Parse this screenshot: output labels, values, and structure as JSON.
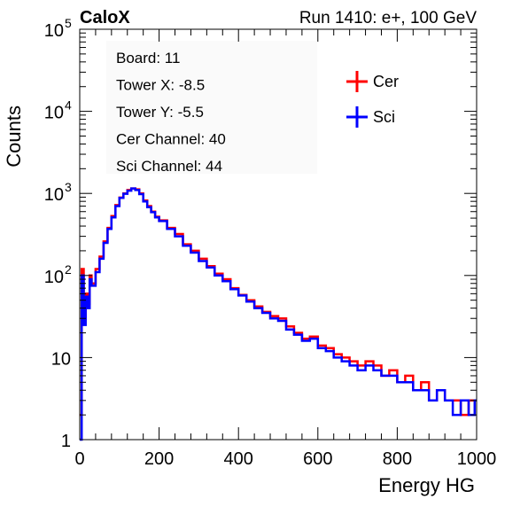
{
  "header": {
    "left": "CaloX",
    "right": "Run 1410: e+, 100 GeV"
  },
  "info_box": {
    "lines": [
      "Board: 11",
      "Tower X: -8.5",
      "Tower Y: -5.5",
      "Cer Channel: 40",
      "Sci Channel: 44"
    ]
  },
  "colors": {
    "cer": "#ff0000",
    "sci": "#0000ff",
    "info_bg": "#fafafa"
  },
  "chart_data": {
    "type": "line",
    "title": "",
    "xlabel": "Energy HG",
    "ylabel": "Counts",
    "xlim": [
      0,
      1000
    ],
    "ylim": [
      1,
      100000
    ],
    "yscale": "log",
    "x_ticks": [
      {
        "value": 0,
        "label": "0"
      },
      {
        "value": 200,
        "label": "200"
      },
      {
        "value": 400,
        "label": "400"
      },
      {
        "value": 600,
        "label": "600"
      },
      {
        "value": 800,
        "label": "800"
      },
      {
        "value": 1000,
        "label": "1000"
      }
    ],
    "y_ticks": [
      {
        "value": 1,
        "base": "1",
        "exp": ""
      },
      {
        "value": 10,
        "base": "10",
        "exp": ""
      },
      {
        "value": 100,
        "base": "10",
        "exp": "2"
      },
      {
        "value": 1000,
        "base": "10",
        "exp": "3"
      },
      {
        "value": 10000,
        "base": "10",
        "exp": "4"
      },
      {
        "value": 100000,
        "base": "10",
        "exp": "5"
      }
    ],
    "legend_position": "top-right",
    "series": [
      {
        "name": "Cer",
        "color": "#ff0000",
        "x": [
          0,
          5,
          10,
          15,
          20,
          25,
          30,
          40,
          50,
          60,
          70,
          80,
          90,
          100,
          110,
          120,
          130,
          140,
          150,
          160,
          170,
          180,
          190,
          200,
          220,
          240,
          260,
          280,
          300,
          320,
          340,
          360,
          380,
          400,
          420,
          440,
          460,
          480,
          500,
          520,
          540,
          560,
          580,
          600,
          620,
          640,
          660,
          680,
          700,
          720,
          740,
          760,
          780,
          800,
          820,
          840,
          860,
          880,
          900,
          920,
          940,
          960,
          980,
          995
        ],
        "y": [
          2,
          120,
          30,
          60,
          45,
          100,
          80,
          120,
          170,
          260,
          380,
          530,
          720,
          890,
          1000,
          1100,
          1150,
          1120,
          1000,
          820,
          700,
          600,
          520,
          470,
          380,
          320,
          240,
          200,
          160,
          130,
          105,
          90,
          70,
          58,
          50,
          42,
          36,
          32,
          30,
          24,
          20,
          17,
          18,
          14,
          13,
          11,
          10,
          9,
          8,
          9,
          8,
          6,
          7,
          5,
          6,
          4,
          5,
          3,
          4,
          3,
          3,
          2,
          3,
          3
        ]
      },
      {
        "name": "Sci",
        "color": "#0000ff",
        "x": [
          0,
          5,
          10,
          15,
          20,
          25,
          30,
          40,
          50,
          60,
          70,
          80,
          90,
          100,
          110,
          120,
          130,
          140,
          150,
          160,
          170,
          180,
          190,
          200,
          220,
          240,
          260,
          280,
          300,
          320,
          340,
          360,
          380,
          400,
          420,
          440,
          460,
          480,
          500,
          520,
          540,
          560,
          580,
          600,
          620,
          640,
          660,
          680,
          700,
          720,
          740,
          760,
          780,
          800,
          820,
          840,
          860,
          880,
          900,
          920,
          940,
          960,
          980,
          995
        ],
        "y": [
          1,
          100,
          25,
          55,
          40,
          90,
          75,
          110,
          160,
          250,
          370,
          510,
          700,
          880,
          990,
          1080,
          1150,
          1100,
          980,
          800,
          680,
          590,
          510,
          460,
          370,
          300,
          230,
          190,
          150,
          125,
          100,
          85,
          68,
          57,
          48,
          40,
          35,
          30,
          28,
          22,
          19,
          16,
          17,
          13,
          12,
          10,
          9,
          8,
          7,
          8,
          7,
          6,
          6,
          5,
          5,
          4,
          4,
          3,
          4,
          3,
          2,
          3,
          2,
          3
        ]
      }
    ]
  }
}
